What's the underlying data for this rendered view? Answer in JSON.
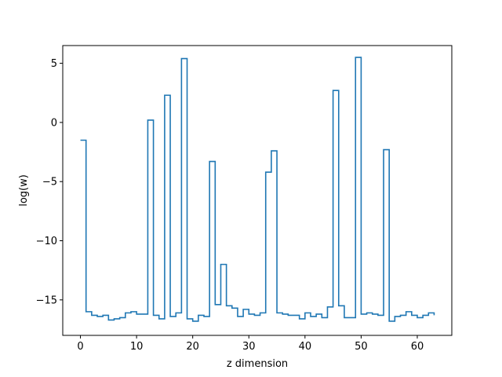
{
  "chart_data": {
    "type": "line",
    "drawstyle": "steps-post",
    "xlabel": "z dimension",
    "ylabel": "log(w)",
    "xlim": [
      -3.15,
      66.15
    ],
    "ylim": [
      -18.0,
      6.5
    ],
    "xticks": [
      0,
      10,
      20,
      30,
      40,
      50,
      60
    ],
    "yticks": [
      5,
      0,
      -5,
      -10,
      -15
    ],
    "ytick_labels": [
      "5",
      "0",
      "−5",
      "−10",
      "−15"
    ],
    "grid": false,
    "series": [
      {
        "color": "#1f77b4",
        "x": [
          0,
          1,
          2,
          3,
          4,
          5,
          6,
          7,
          8,
          9,
          10,
          11,
          12,
          13,
          14,
          15,
          16,
          17,
          18,
          19,
          20,
          21,
          22,
          23,
          24,
          25,
          26,
          27,
          28,
          29,
          30,
          31,
          32,
          33,
          34,
          35,
          36,
          37,
          38,
          39,
          40,
          41,
          42,
          43,
          44,
          45,
          46,
          47,
          48,
          49,
          50,
          51,
          52,
          53,
          54,
          55,
          56,
          57,
          58,
          59,
          60,
          61,
          62,
          63
        ],
        "values": [
          -1.5,
          -16.0,
          -16.3,
          -16.4,
          -16.3,
          -16.7,
          -16.6,
          -16.5,
          -16.1,
          -16.0,
          -16.2,
          -16.2,
          0.2,
          -16.3,
          -16.6,
          2.3,
          -16.4,
          -16.1,
          5.4,
          -16.6,
          -16.8,
          -16.3,
          -16.4,
          -3.3,
          -15.4,
          -12.0,
          -15.5,
          -15.7,
          -16.4,
          -15.8,
          -16.2,
          -16.3,
          -16.1,
          -4.2,
          -2.4,
          -16.1,
          -16.2,
          -16.3,
          -16.3,
          -16.6,
          -16.1,
          -16.4,
          -16.2,
          -16.5,
          -15.6,
          2.7,
          -15.5,
          -16.5,
          -16.5,
          5.5,
          -16.2,
          -16.1,
          -16.2,
          -16.3,
          -2.3,
          -16.8,
          -16.4,
          -16.3,
          -16.0,
          -16.3,
          -16.5,
          -16.3,
          -16.1,
          -16.3
        ]
      }
    ]
  }
}
